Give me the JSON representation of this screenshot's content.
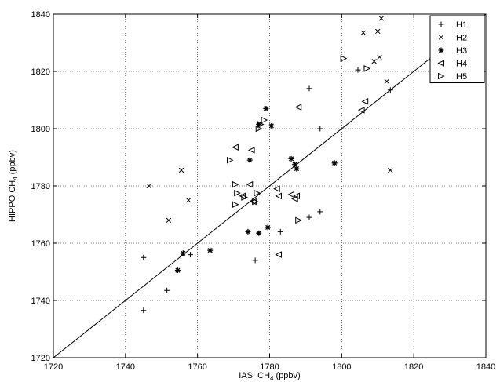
{
  "chart_data": {
    "type": "scatter",
    "xlabel": {
      "main": "IASI CH",
      "sub": "4",
      "unit": " (ppbv)"
    },
    "ylabel": {
      "main": "HIPPO CH",
      "sub": "4",
      "unit": " (ppbv)"
    },
    "xlim": [
      1720,
      1840
    ],
    "ylim": [
      1720,
      1840
    ],
    "xticks": [
      1720,
      1740,
      1760,
      1780,
      1800,
      1820,
      1840
    ],
    "yticks": [
      1720,
      1740,
      1760,
      1780,
      1800,
      1820,
      1840
    ],
    "grid": true,
    "grid_style": "dotted",
    "legend_position": "top-right",
    "reference_line": {
      "x": [
        1720,
        1840
      ],
      "y": [
        1720,
        1840
      ]
    },
    "series": [
      {
        "name": "H1",
        "marker": "plus",
        "points": [
          [
            1745,
            1755
          ],
          [
            1745,
            1736.5
          ],
          [
            1751.5,
            1743.5
          ],
          [
            1758,
            1756
          ],
          [
            1776,
            1754
          ],
          [
            1783,
            1764
          ],
          [
            1791,
            1769
          ],
          [
            1794,
            1771
          ],
          [
            1794,
            1800
          ],
          [
            1791,
            1814
          ],
          [
            1804.5,
            1820.5
          ],
          [
            1813.5,
            1813.5
          ]
        ]
      },
      {
        "name": "H2",
        "marker": "x",
        "points": [
          [
            1746.5,
            1780
          ],
          [
            1752,
            1768
          ],
          [
            1755.5,
            1785.5
          ],
          [
            1757.5,
            1775
          ],
          [
            1806,
            1833.5
          ],
          [
            1809,
            1823.5
          ],
          [
            1810,
            1834
          ],
          [
            1810.5,
            1825
          ],
          [
            1811,
            1838.5
          ],
          [
            1812.5,
            1816.5
          ],
          [
            1813.5,
            1785.5
          ]
        ]
      },
      {
        "name": "H3",
        "marker": "star",
        "points": [
          [
            1754.5,
            1750.5
          ],
          [
            1756,
            1756.5
          ],
          [
            1763.5,
            1757.5
          ],
          [
            1774,
            1764
          ],
          [
            1774.5,
            1789
          ],
          [
            1777,
            1763.5
          ],
          [
            1777,
            1801.5
          ],
          [
            1779,
            1807
          ],
          [
            1779.5,
            1765.5
          ],
          [
            1780.5,
            1801
          ],
          [
            1786,
            1789.5
          ],
          [
            1787,
            1787.5
          ],
          [
            1787.5,
            1786
          ],
          [
            1798,
            1788
          ]
        ]
      },
      {
        "name": "H4",
        "marker": "triangle-left",
        "points": [
          [
            1770.5,
            1793.5
          ],
          [
            1772.5,
            1776.5
          ],
          [
            1774.5,
            1780.5
          ],
          [
            1775,
            1792.5
          ],
          [
            1775.5,
            1774.5
          ],
          [
            1782,
            1779
          ],
          [
            1782.5,
            1776.5
          ],
          [
            1782.5,
            1756
          ],
          [
            1786,
            1777
          ],
          [
            1787,
            1775.5
          ],
          [
            1787.5,
            1776.5
          ],
          [
            1788,
            1807.5
          ],
          [
            1805.5,
            1806.5
          ],
          [
            1806.5,
            1809.5
          ]
        ]
      },
      {
        "name": "H5",
        "marker": "triangle-right",
        "points": [
          [
            1769,
            1789
          ],
          [
            1770.5,
            1780.5
          ],
          [
            1771,
            1777.5
          ],
          [
            1770.5,
            1773.5
          ],
          [
            1773,
            1776
          ],
          [
            1776,
            1774.5
          ],
          [
            1776.5,
            1777.5
          ],
          [
            1777,
            1800
          ],
          [
            1777.5,
            1801.5
          ],
          [
            1778.5,
            1803
          ],
          [
            1788,
            1768
          ],
          [
            1800.5,
            1824.5
          ],
          [
            1807,
            1821
          ]
        ]
      }
    ]
  }
}
